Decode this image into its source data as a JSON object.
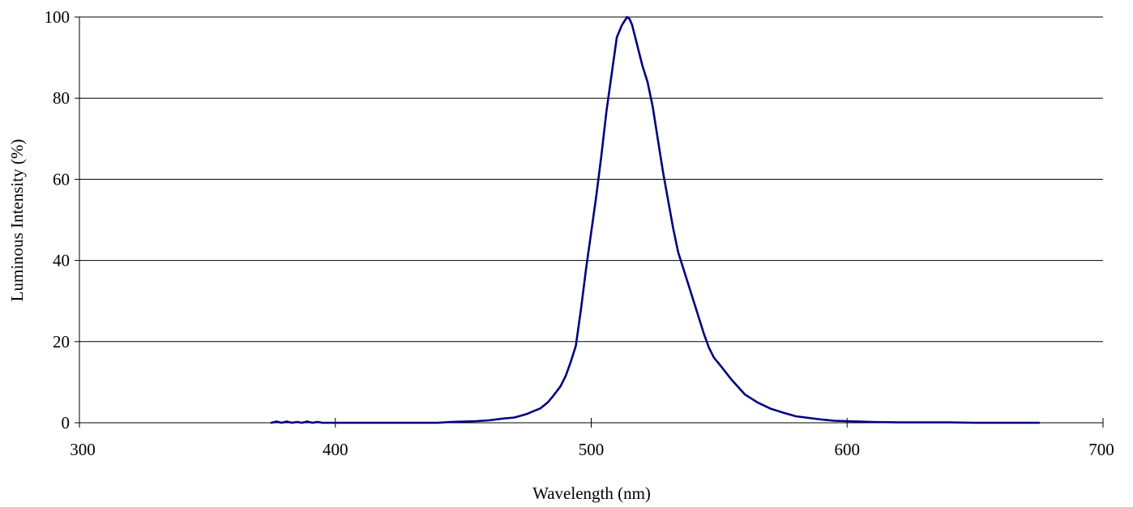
{
  "chart_data": {
    "type": "line",
    "title": "",
    "xlabel": "Wavelength (nm)",
    "ylabel": "Luminous Intensity (%)",
    "xlim": [
      300,
      700
    ],
    "ylim": [
      0,
      100
    ],
    "xticks": [
      "300",
      "400",
      "500",
      "600",
      "700"
    ],
    "yticks": [
      "0",
      "20",
      "40",
      "60",
      "80",
      "100"
    ],
    "grid": "horizontal",
    "legend": "none",
    "series": [
      {
        "color": "#000080",
        "x": [
          375,
          377,
          379,
          381,
          383,
          385,
          387,
          389,
          391,
          393,
          395,
          400,
          405,
          410,
          420,
          430,
          440,
          445,
          450,
          455,
          460,
          465,
          470,
          475,
          478,
          480,
          483,
          485,
          488,
          490,
          492,
          494,
          496,
          498,
          500,
          502,
          504,
          506,
          508,
          510,
          512,
          514,
          515,
          516,
          518,
          520,
          522,
          524,
          526,
          528,
          530,
          532,
          534,
          536,
          538,
          540,
          542,
          544,
          546,
          548,
          550,
          555,
          560,
          565,
          570,
          575,
          580,
          585,
          590,
          595,
          600,
          605,
          610,
          620,
          630,
          640,
          650,
          660,
          670,
          675
        ],
        "y": [
          0,
          0.3,
          0,
          0.3,
          0,
          0.2,
          0,
          0.3,
          0,
          0.2,
          0,
          0,
          0,
          0,
          0,
          0,
          0,
          0.2,
          0.3,
          0.4,
          0.6,
          1,
          1.3,
          2.2,
          3,
          3.5,
          5,
          6.5,
          9,
          11.5,
          15,
          19,
          28,
          38,
          47,
          56,
          66,
          77,
          86,
          95,
          98,
          100,
          99.5,
          98,
          93,
          88,
          84,
          78,
          70,
          62,
          55,
          48,
          42,
          38,
          34,
          30,
          26,
          22,
          18.5,
          16,
          14.5,
          10.5,
          7,
          5,
          3.5,
          2.5,
          1.6,
          1.2,
          0.8,
          0.5,
          0.4,
          0.3,
          0.2,
          0.1,
          0.1,
          0.1,
          0,
          0,
          0,
          0
        ]
      }
    ]
  }
}
